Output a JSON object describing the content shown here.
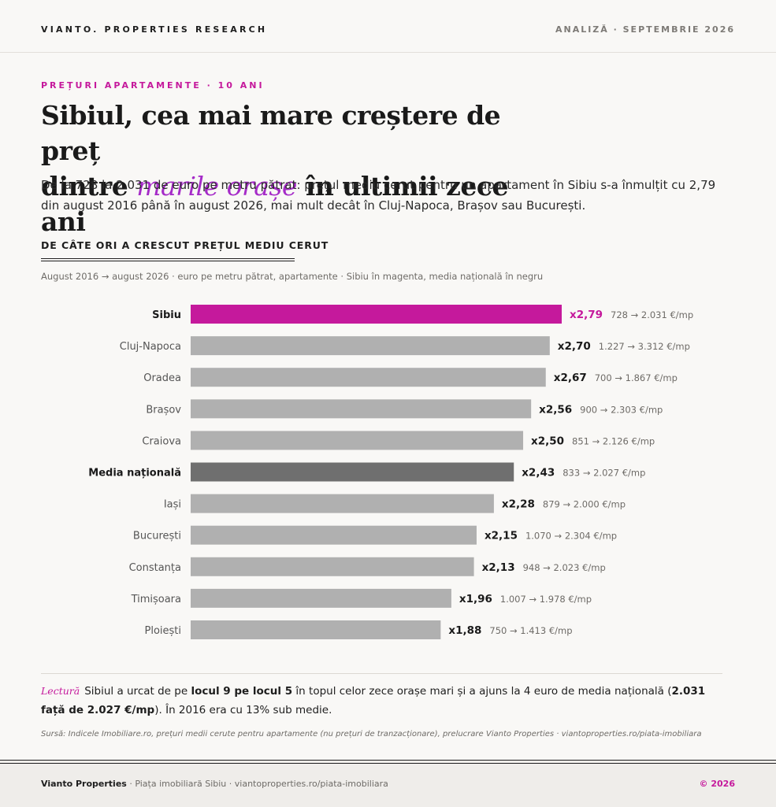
{
  "header": {
    "brand": "VIANTO. PROPERTIES RESEARCH",
    "issue": "ANALIZĂ · SEPTEMBRIE 2026"
  },
  "kicker": "PREȚURI APARTAMENTE · 10 ANI",
  "title": {
    "line1": "Sibiul, cea mai mare creștere de preț",
    "line2_prefix": "dintre ",
    "line2_highlight": "marile orașe",
    "line2_suffix": " în ultimii zece ani"
  },
  "lede": "De la 728 la 2.031 de euro pe metru pătrat: prețul mediu cerut pentru un apartament în Sibiu s-a înmulțit cu 2,79 din august 2016 până în august 2026, mai mult decât în Cluj-Napoca, Brașov sau București.",
  "section": {
    "heading": "DE CÂTE ORI A CRESCUT PREȚUL MEDIU CERUT",
    "subtitle": "August 2016 → august 2026 · euro pe metru pătrat, apartamente · Sibiu în magenta, media națională în negru"
  },
  "chart_data": {
    "type": "bar",
    "orientation": "horizontal",
    "categories": [
      "Sibiu",
      "Cluj-Napoca",
      "Oradea",
      "Brașov",
      "Craiova",
      "Media națională",
      "Iași",
      "București",
      "Constanța",
      "Timișoara",
      "Ploiești"
    ],
    "values": [
      2.79,
      2.7,
      2.67,
      2.56,
      2.5,
      2.43,
      2.28,
      2.15,
      2.13,
      1.96,
      1.88
    ],
    "value_labels": [
      "x2,79",
      "x2,70",
      "x2,67",
      "x2,56",
      "x2,50",
      "x2,43",
      "x2,28",
      "x2,15",
      "x2,13",
      "x1,96",
      "x1,88"
    ],
    "price_labels": [
      "728 → 2.031 €/mp",
      "1.227 → 3.312 €/mp",
      "700 → 1.867 €/mp",
      "900 → 2.303 €/mp",
      "851 → 2.126 €/mp",
      "833 → 2.027 €/mp",
      "879 → 2.000 €/mp",
      "1.070 → 2.304 €/mp",
      "948 → 2.023 €/mp",
      "1.007 → 1.978 €/mp",
      "750 → 1.413 €/mp"
    ],
    "highlight": {
      "Sibiu": "#c5199c",
      "Media națională": "#6f6f6f"
    },
    "default_color": "#b0b0b0",
    "xlim": [
      0,
      2.79
    ],
    "grid": false
  },
  "note": {
    "tag": "Lectură",
    "text_a": "Sibiul a urcat de pe ",
    "bold_a": "locul 9 pe locul 5",
    "text_b": " în topul celor zece orașe mari și a ajuns la 4 euro de media națională (",
    "bold_b": "2.031 față de 2.027 €/mp",
    "text_c": "). În 2016 era cu 13% sub medie."
  },
  "source": "Sursă: Indicele Imobiliare.ro, prețuri medii cerute pentru apartamente (nu prețuri de tranzacționare), prelucrare Vianto Properties · viantoproperties.ro/piata-imobiliara",
  "footer": {
    "brand": "Vianto Properties",
    "rest": " · Piața imobiliară Sibiu · viantoproperties.ro/piata-imobiliara",
    "copyright": "© 2026"
  }
}
